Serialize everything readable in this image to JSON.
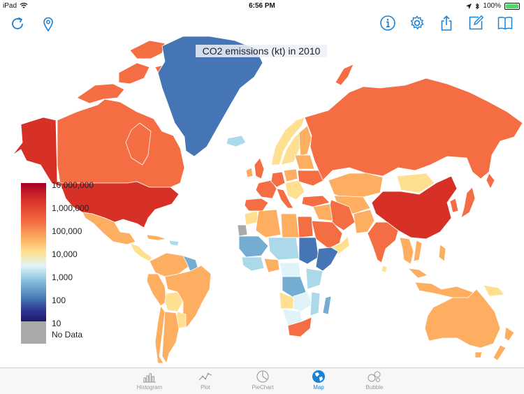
{
  "status_bar": {
    "device": "iPad",
    "time": "6:56 PM",
    "battery": "100%"
  },
  "toolbar": {
    "left_icons": [
      "refresh-icon",
      "location-pin-icon"
    ],
    "right_icons": [
      "info-icon",
      "settings-gear-icon",
      "share-icon",
      "edit-icon",
      "book-icon"
    ],
    "accent_color": "#1a82d6"
  },
  "map": {
    "title": "CO2 emissions (kt) in 2010",
    "legend": {
      "labels": [
        "10,000,000",
        "1,000,000",
        "100,000",
        "10,000",
        "1,000",
        "100",
        "10"
      ],
      "no_data_label": "No Data",
      "colors": [
        "#a50026",
        "#d73027",
        "#f46d43",
        "#fdae61",
        "#fee090",
        "#abd9e9",
        "#4575b4",
        "#313695"
      ],
      "no_data_color": "#a9a9a9"
    }
  },
  "tabs": [
    {
      "label": "Histogram",
      "icon": "histogram-icon",
      "active": false
    },
    {
      "label": "Plot",
      "icon": "line-plot-icon",
      "active": false
    },
    {
      "label": "PieChart",
      "icon": "pie-chart-icon",
      "active": false
    },
    {
      "label": "Map",
      "icon": "globe-icon",
      "active": true
    },
    {
      "label": "Bubble",
      "icon": "bubbles-icon",
      "active": false
    }
  ]
}
